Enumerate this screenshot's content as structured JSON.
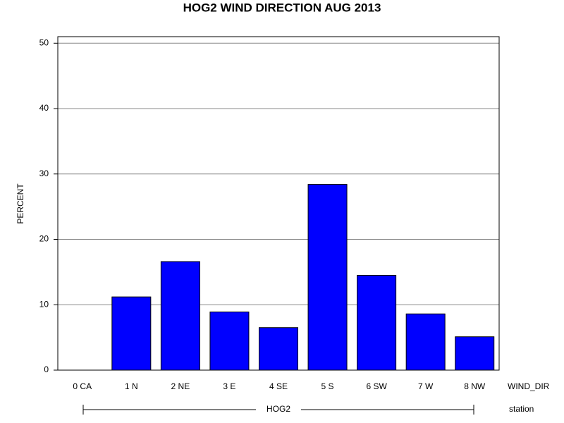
{
  "chart_data": {
    "type": "bar",
    "title": "HOG2 WIND DIRECTION AUG 2013",
    "y_label": "PERCENT",
    "x_label": "WIND_DIR",
    "group_label": "station",
    "group": "HOG2",
    "categories": [
      "0 CA",
      "1 N",
      "2 NE",
      "3 E",
      "4 SE",
      "5 S",
      "6 SW",
      "7 W",
      "8 NW"
    ],
    "values": [
      0,
      11.2,
      16.6,
      8.9,
      6.5,
      28.4,
      14.5,
      8.6,
      5.1
    ],
    "color": "#0000ff",
    "ylim": [
      0,
      51
    ],
    "yticks": [
      0,
      10,
      20,
      30,
      40,
      50
    ],
    "grid": true
  }
}
